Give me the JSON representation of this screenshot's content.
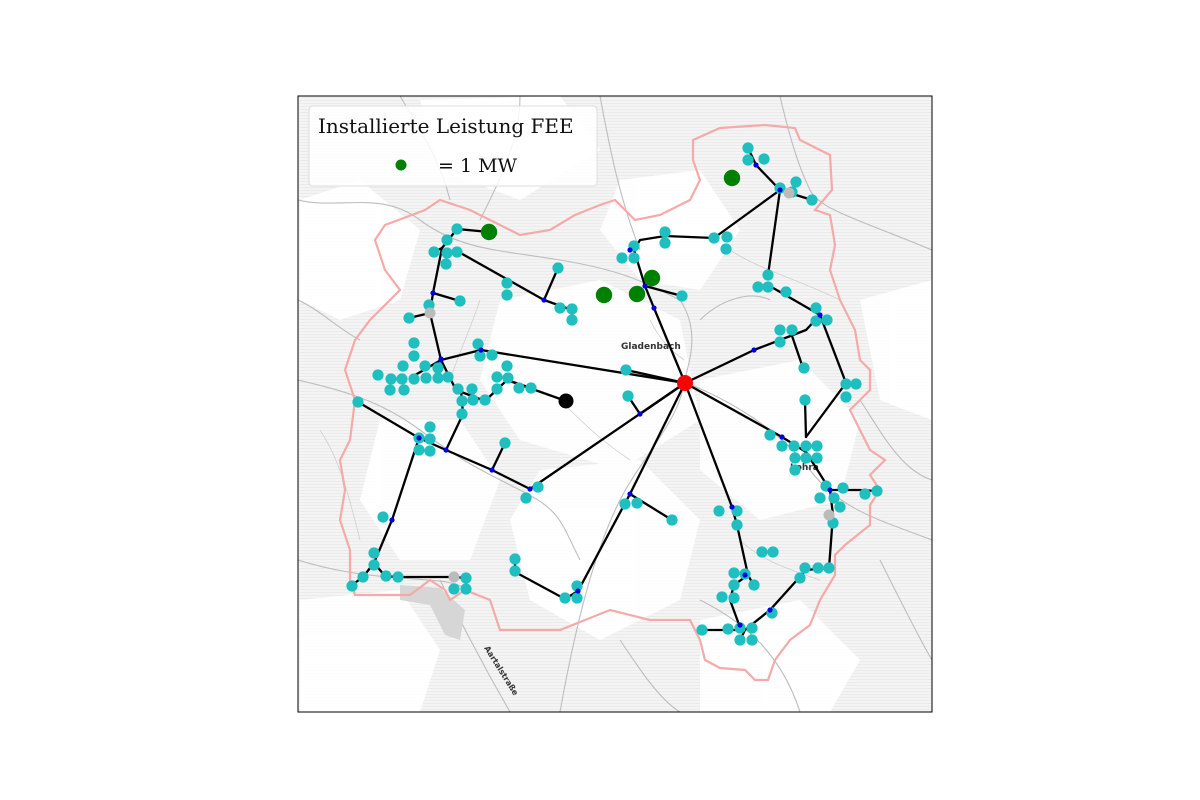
{
  "legend": {
    "title": "Installierte Leistung FEE",
    "item_label": "= 1 MW",
    "item_color": "#008000"
  },
  "places": {
    "gladenbach": "Gladenbach",
    "lohra": "Lohra",
    "street": "Aartalstraße"
  },
  "colors": {
    "substation": "#ff0000",
    "load_node": "#1fbfbf",
    "junction": "#0000dd",
    "generator": "#008000",
    "storage": "#000000",
    "switch": "#bbbbbb",
    "line": "#000000",
    "boundary": "#f4aaa8",
    "roads": "#b8b8b8"
  },
  "icons": {
    "substation": "red-dot-icon",
    "generator": "green-dot-icon"
  }
}
